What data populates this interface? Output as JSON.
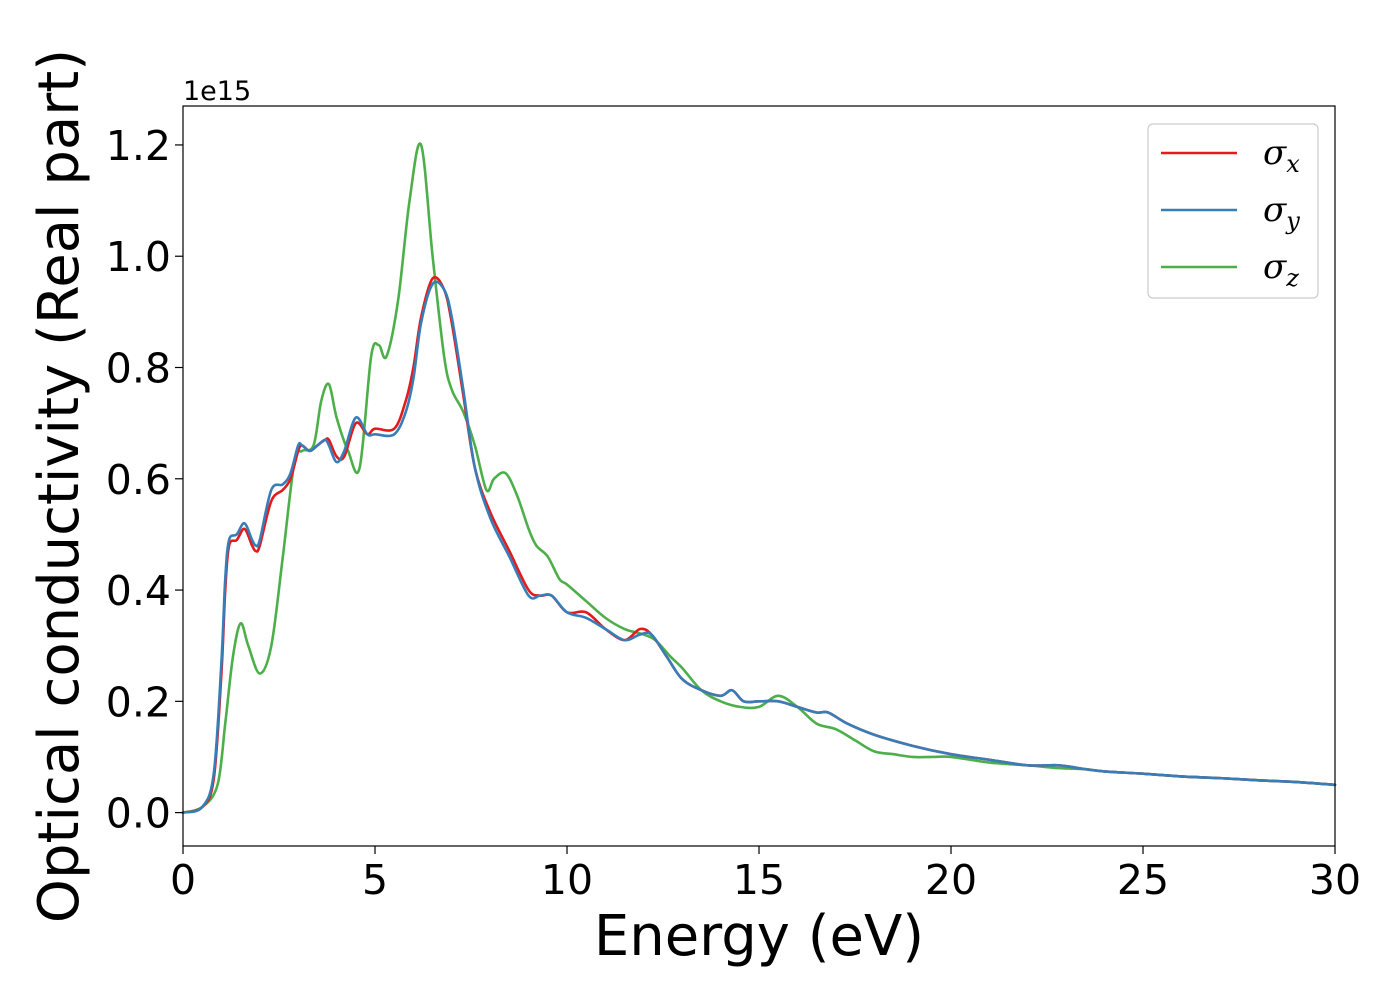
{
  "chart_data": {
    "type": "line",
    "xlabel": "Energy (eV)",
    "ylabel": "Optical conductivity (Real part)",
    "y_offset_label": "1e15",
    "xlim": [
      0,
      30
    ],
    "ylim": [
      -0.06,
      1.27
    ],
    "xticks": [
      0,
      5,
      10,
      15,
      20,
      25,
      30
    ],
    "xtick_labels": [
      "0",
      "5",
      "10",
      "15",
      "20",
      "25",
      "30"
    ],
    "yticks": [
      0.0,
      0.2,
      0.4,
      0.6,
      0.8,
      1.0,
      1.2
    ],
    "ytick_labels": [
      "0.0",
      "0.2",
      "0.4",
      "0.6",
      "0.8",
      "1.0",
      "1.2"
    ],
    "grid": false,
    "legend_position": "top-right",
    "series": [
      {
        "name": "σx",
        "symbol": "σ",
        "subscript": "x",
        "color": "#e41a1c",
        "x": [
          0,
          0.5,
          0.8,
          1.0,
          1.1,
          1.2,
          1.4,
          1.6,
          1.8,
          1.9,
          2.0,
          2.3,
          2.6,
          2.8,
          3.0,
          3.1,
          3.3,
          3.5,
          3.7,
          3.8,
          4.0,
          4.2,
          4.5,
          4.8,
          5.0,
          5.5,
          5.8,
          6.0,
          6.2,
          6.5,
          6.8,
          7.0,
          7.3,
          7.6,
          8.0,
          8.5,
          9.0,
          9.3,
          9.6,
          10.0,
          10.5,
          11.0,
          11.5,
          11.9,
          12.2,
          12.6,
          13.0,
          13.5,
          14.0,
          14.3,
          14.6,
          15.0,
          15.5,
          16.0,
          16.5,
          16.8,
          17.3,
          18.0,
          19.0,
          20.0,
          21.0,
          22.0,
          22.8,
          23.5,
          24.0,
          25.0,
          26.0,
          27.0,
          28.0,
          29.0,
          30.0
        ],
        "y": [
          0.0,
          0.01,
          0.06,
          0.25,
          0.4,
          0.48,
          0.49,
          0.51,
          0.48,
          0.47,
          0.48,
          0.56,
          0.58,
          0.6,
          0.65,
          0.66,
          0.65,
          0.66,
          0.67,
          0.67,
          0.64,
          0.64,
          0.7,
          0.68,
          0.69,
          0.69,
          0.74,
          0.8,
          0.89,
          0.96,
          0.94,
          0.88,
          0.75,
          0.62,
          0.54,
          0.47,
          0.4,
          0.39,
          0.39,
          0.36,
          0.36,
          0.33,
          0.31,
          0.33,
          0.32,
          0.28,
          0.24,
          0.22,
          0.21,
          0.22,
          0.2,
          0.2,
          0.2,
          0.19,
          0.18,
          0.18,
          0.16,
          0.14,
          0.12,
          0.105,
          0.095,
          0.085,
          0.085,
          0.078,
          0.074,
          0.07,
          0.065,
          0.062,
          0.058,
          0.055,
          0.05
        ]
      },
      {
        "name": "σy",
        "symbol": "σ",
        "subscript": "y",
        "color": "#377eb8",
        "x": [
          0,
          0.5,
          0.8,
          1.0,
          1.1,
          1.2,
          1.4,
          1.6,
          1.8,
          1.9,
          2.0,
          2.3,
          2.6,
          2.8,
          3.0,
          3.1,
          3.3,
          3.5,
          3.7,
          3.8,
          4.0,
          4.2,
          4.5,
          4.8,
          5.0,
          5.5,
          5.8,
          6.0,
          6.2,
          6.5,
          6.8,
          7.0,
          7.3,
          7.6,
          8.0,
          8.5,
          9.0,
          9.3,
          9.6,
          10.0,
          10.5,
          11.0,
          11.5,
          11.9,
          12.2,
          12.6,
          13.0,
          13.5,
          14.0,
          14.3,
          14.6,
          15.0,
          15.5,
          16.0,
          16.5,
          16.8,
          17.3,
          18.0,
          19.0,
          20.0,
          21.0,
          22.0,
          22.8,
          23.5,
          24.0,
          25.0,
          26.0,
          27.0,
          28.0,
          29.0,
          30.0
        ],
        "y": [
          0.0,
          0.01,
          0.07,
          0.27,
          0.42,
          0.49,
          0.5,
          0.52,
          0.49,
          0.48,
          0.49,
          0.58,
          0.59,
          0.61,
          0.66,
          0.66,
          0.65,
          0.66,
          0.67,
          0.66,
          0.63,
          0.65,
          0.71,
          0.68,
          0.68,
          0.68,
          0.72,
          0.78,
          0.88,
          0.95,
          0.94,
          0.89,
          0.76,
          0.62,
          0.53,
          0.46,
          0.39,
          0.39,
          0.39,
          0.36,
          0.35,
          0.33,
          0.31,
          0.32,
          0.32,
          0.28,
          0.24,
          0.22,
          0.21,
          0.22,
          0.2,
          0.2,
          0.2,
          0.19,
          0.18,
          0.18,
          0.16,
          0.14,
          0.12,
          0.105,
          0.095,
          0.085,
          0.085,
          0.078,
          0.074,
          0.07,
          0.065,
          0.062,
          0.058,
          0.055,
          0.05
        ]
      },
      {
        "name": "σz",
        "symbol": "σ",
        "subscript": "z",
        "color": "#4daf4a",
        "x": [
          0,
          0.5,
          0.9,
          1.1,
          1.3,
          1.5,
          1.7,
          2.0,
          2.3,
          2.6,
          2.9,
          3.1,
          3.4,
          3.6,
          3.8,
          4.0,
          4.3,
          4.6,
          4.9,
          5.1,
          5.3,
          5.6,
          5.9,
          6.2,
          6.5,
          6.8,
          7.0,
          7.3,
          7.6,
          7.9,
          8.1,
          8.4,
          8.7,
          9.0,
          9.2,
          9.5,
          9.8,
          10.0,
          10.5,
          11.0,
          11.5,
          12.0,
          12.3,
          12.7,
          13.0,
          13.5,
          14.0,
          14.5,
          15.0,
          15.5,
          16.0,
          16.5,
          17.0,
          17.5,
          18.0,
          18.5,
          19.0,
          19.5,
          20.0,
          21.0,
          22.0,
          22.8,
          23.5,
          24.0,
          25.0,
          26.0,
          27.0,
          28.0,
          29.0,
          30.0
        ],
        "y": [
          0.0,
          0.01,
          0.05,
          0.16,
          0.28,
          0.34,
          0.3,
          0.25,
          0.3,
          0.46,
          0.63,
          0.65,
          0.66,
          0.74,
          0.77,
          0.71,
          0.65,
          0.62,
          0.82,
          0.84,
          0.82,
          0.92,
          1.1,
          1.2,
          1.0,
          0.82,
          0.76,
          0.72,
          0.66,
          0.58,
          0.6,
          0.61,
          0.57,
          0.51,
          0.48,
          0.46,
          0.42,
          0.41,
          0.38,
          0.35,
          0.33,
          0.32,
          0.31,
          0.28,
          0.26,
          0.22,
          0.2,
          0.19,
          0.19,
          0.21,
          0.19,
          0.16,
          0.15,
          0.13,
          0.11,
          0.105,
          0.1,
          0.1,
          0.1,
          0.09,
          0.085,
          0.08,
          0.078,
          0.074,
          0.07,
          0.065,
          0.062,
          0.058,
          0.055,
          0.05
        ]
      }
    ]
  }
}
